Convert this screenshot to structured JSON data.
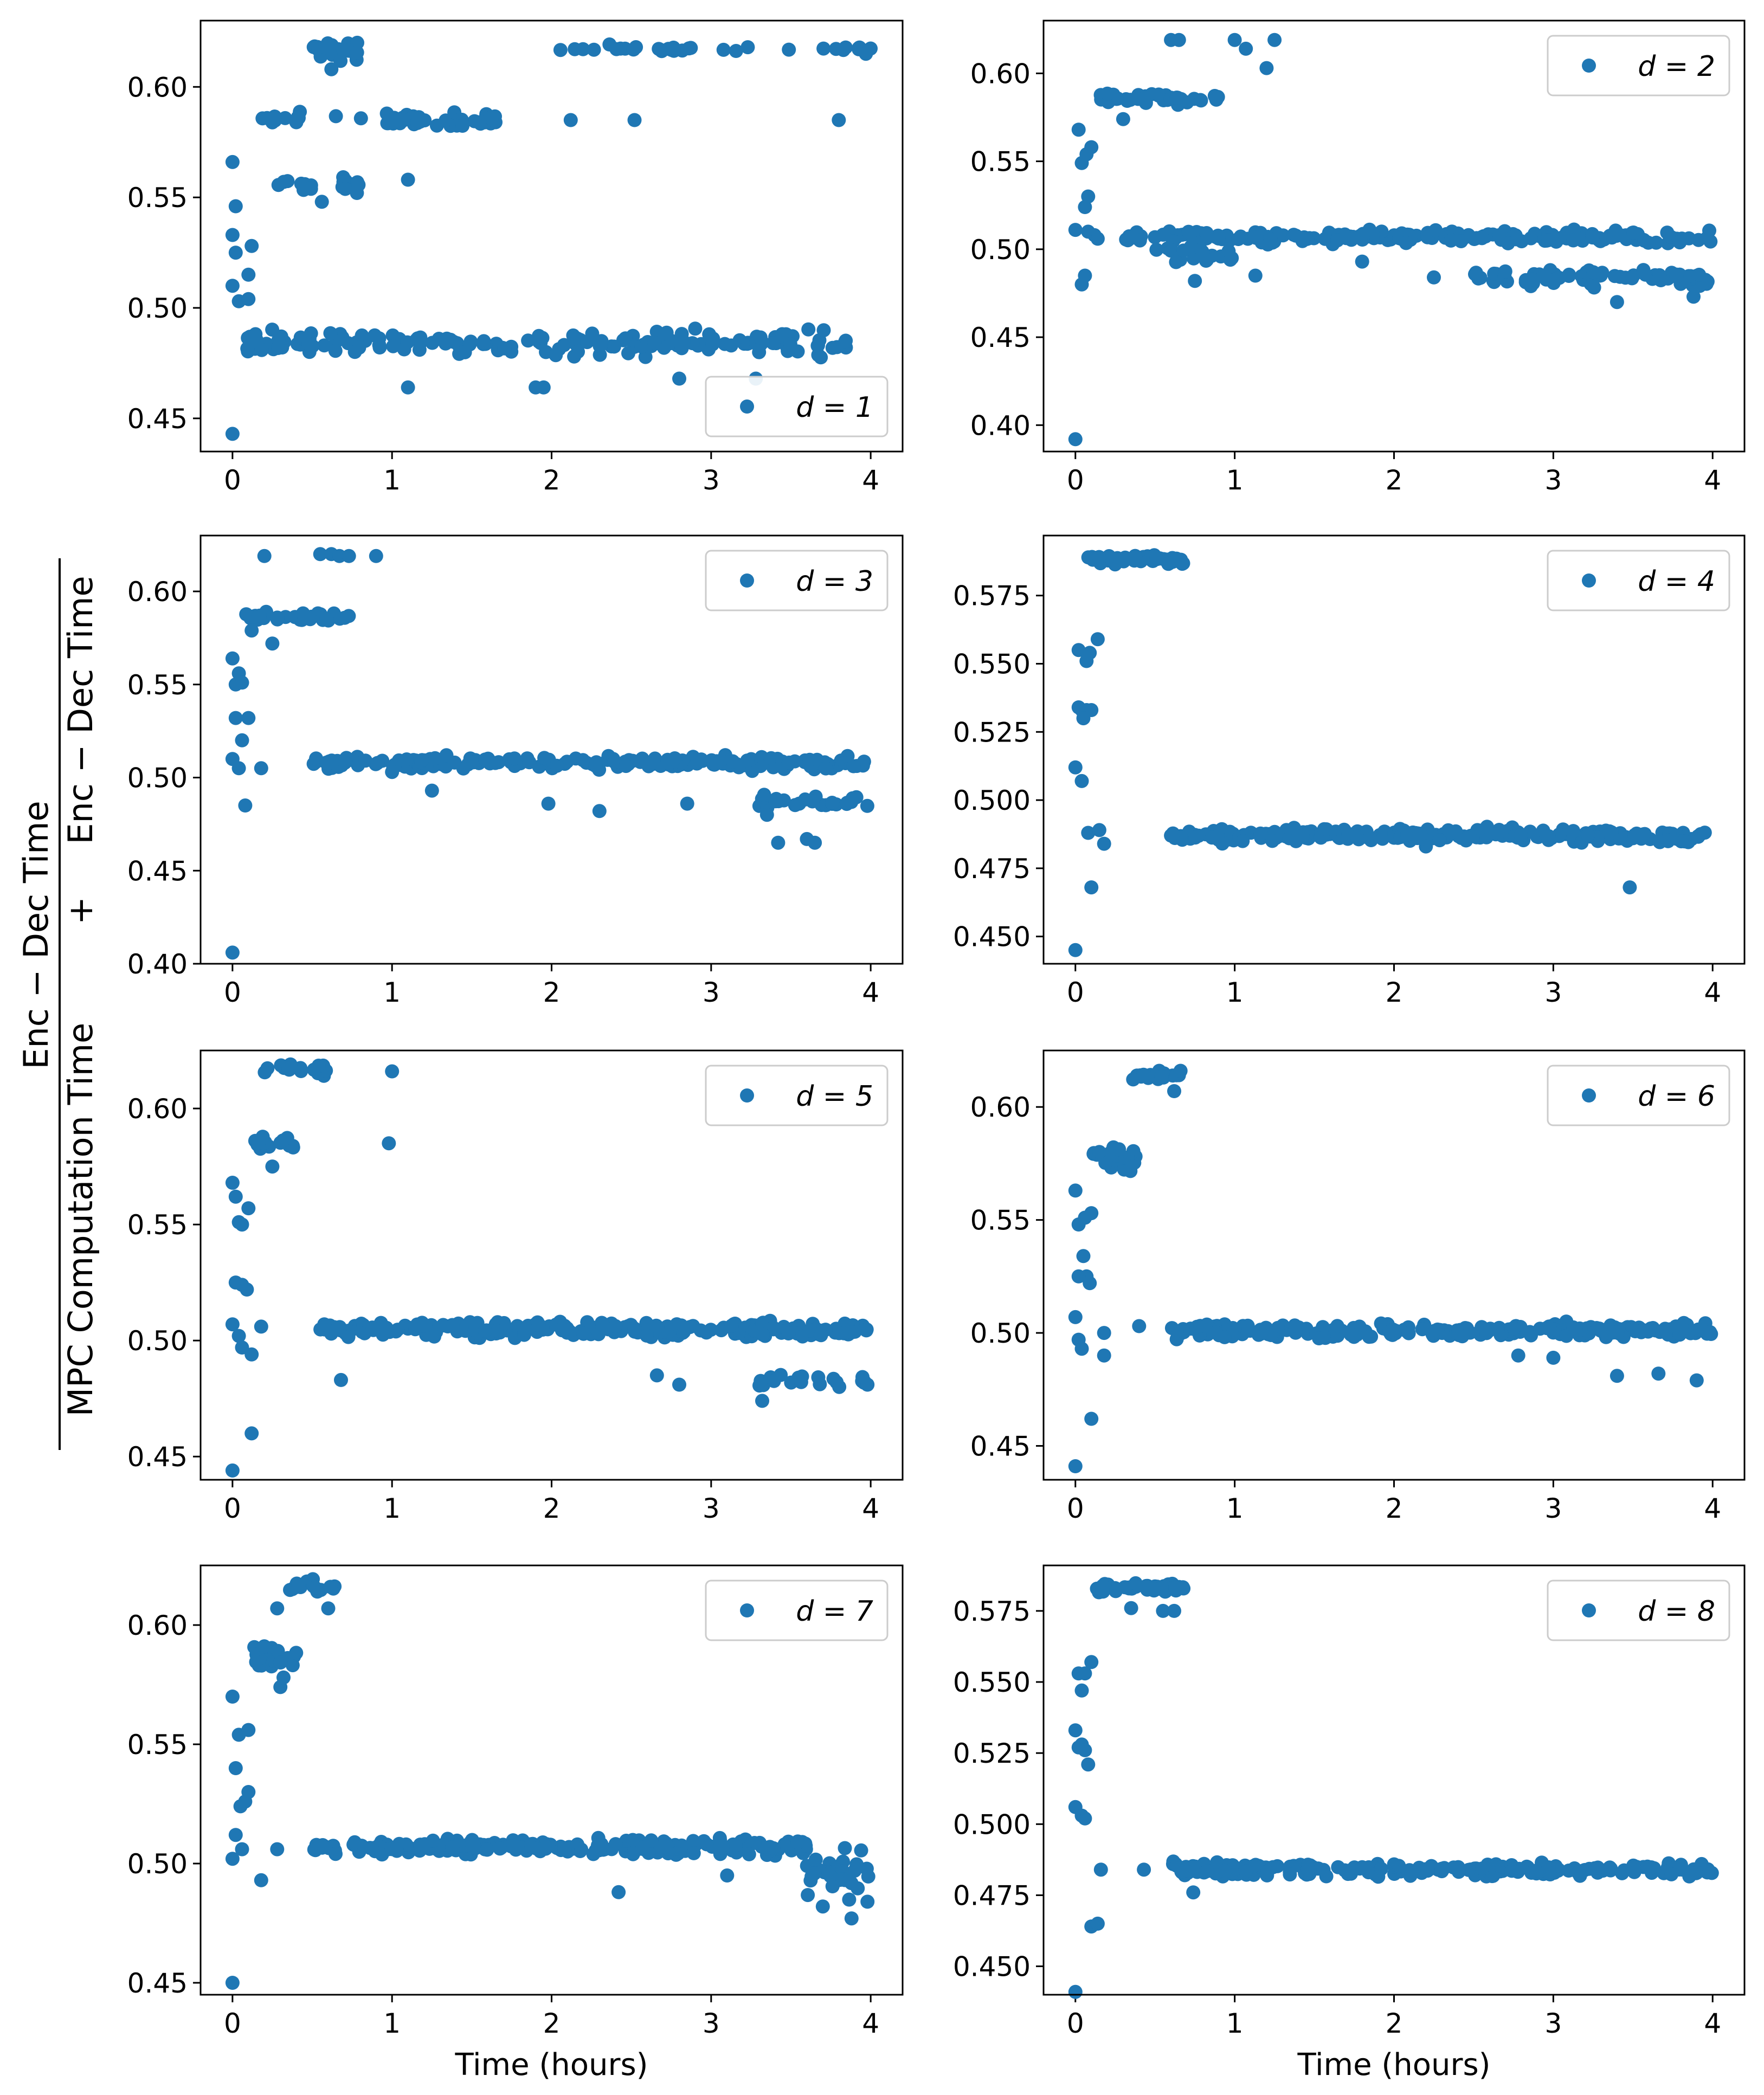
{
  "figure": {
    "shared_ylabel": {
      "numerator_1": "Enc − Dec   Time",
      "denominator_1": "MPC   Computation   Time",
      "plus": "+",
      "denominator_2": "Enc − Dec   Time"
    }
  },
  "colors": {
    "marker": "#1f77b4",
    "axes": "#000000",
    "legend_border": "#cccccc"
  },
  "chart_data": [
    {
      "type": "scatter",
      "title": "",
      "legend": "d = 1",
      "legend_loc": "lower-right",
      "xlabel": "",
      "ylabel": "",
      "xlim": [
        -0.2,
        4.2
      ],
      "ylim": [
        0.435,
        0.63
      ],
      "xticks": [
        0,
        1,
        2,
        3,
        4
      ],
      "yticks": [
        0.45,
        0.5,
        0.55,
        0.6
      ],
      "ytick_labels": [
        "0.45",
        "0.50",
        "0.55",
        "0.60"
      ],
      "clusters": [
        {
          "x_range": [
            0.04,
            4.0
          ],
          "y": 0.484,
          "spread": 0.003,
          "n": 170
        },
        {
          "x_range": [
            0.15,
            1.7
          ],
          "y": 0.585,
          "spread": 0.002,
          "n": 45
        },
        {
          "x_range": [
            0.15,
            0.8
          ],
          "y": 0.557,
          "spread": 0.002,
          "n": 20
        },
        {
          "x_range": [
            0.5,
            0.8
          ],
          "y": 0.616,
          "spread": 0.003,
          "n": 18
        },
        {
          "x_range": [
            2.0,
            4.0
          ],
          "y": 0.617,
          "spread": 0.001,
          "n": 32
        }
      ],
      "points": [
        [
          0.0,
          0.443
        ],
        [
          0.0,
          0.566
        ],
        [
          0.02,
          0.546
        ],
        [
          0.0,
          0.533
        ],
        [
          0.02,
          0.525
        ],
        [
          0.0,
          0.51
        ],
        [
          0.04,
          0.503
        ],
        [
          0.1,
          0.504
        ],
        [
          0.1,
          0.515
        ],
        [
          0.12,
          0.528
        ],
        [
          1.1,
          0.464
        ],
        [
          1.1,
          0.558
        ],
        [
          1.9,
          0.464
        ],
        [
          1.95,
          0.464
        ],
        [
          2.12,
          0.585
        ],
        [
          2.52,
          0.585
        ],
        [
          2.8,
          0.468
        ],
        [
          3.28,
          0.468
        ],
        [
          3.8,
          0.585
        ],
        [
          3.97,
          0.615
        ],
        [
          0.56,
          0.548
        ],
        [
          0.62,
          0.608
        ],
        [
          0.4,
          0.584
        ],
        [
          1.55,
          0.584
        ],
        [
          0.78,
          0.552
        ],
        [
          1.0,
          0.585
        ]
      ]
    },
    {
      "type": "scatter",
      "title": "",
      "legend": "d = 2",
      "legend_loc": "upper-right",
      "xlabel": "",
      "ylabel": "",
      "xlim": [
        -0.2,
        4.2
      ],
      "ylim": [
        0.385,
        0.63
      ],
      "xticks": [
        0,
        1,
        2,
        3,
        4
      ],
      "yticks": [
        0.4,
        0.45,
        0.5,
        0.55,
        0.6
      ],
      "ytick_labels": [
        "0.40",
        "0.45",
        "0.50",
        "0.55",
        "0.60"
      ],
      "clusters": [
        {
          "x_range": [
            0.3,
            4.0
          ],
          "y": 0.507,
          "spread": 0.002,
          "n": 190
        },
        {
          "x_range": [
            2.5,
            4.0
          ],
          "y": 0.484,
          "spread": 0.003,
          "n": 70
        },
        {
          "x_range": [
            0.15,
            0.9
          ],
          "y": 0.586,
          "spread": 0.002,
          "n": 35
        },
        {
          "x_range": [
            0.5,
            1.0
          ],
          "y": 0.497,
          "spread": 0.004,
          "n": 20
        }
      ],
      "points": [
        [
          0.0,
          0.392
        ],
        [
          0.0,
          0.511
        ],
        [
          0.02,
          0.568
        ],
        [
          0.04,
          0.549
        ],
        [
          0.07,
          0.554
        ],
        [
          0.1,
          0.558
        ],
        [
          0.08,
          0.53
        ],
        [
          0.06,
          0.524
        ],
        [
          0.04,
          0.48
        ],
        [
          0.06,
          0.485
        ],
        [
          0.08,
          0.51
        ],
        [
          0.12,
          0.508
        ],
        [
          0.14,
          0.506
        ],
        [
          0.6,
          0.619
        ],
        [
          0.65,
          0.619
        ],
        [
          1.0,
          0.619
        ],
        [
          1.07,
          0.614
        ],
        [
          1.2,
          0.603
        ],
        [
          1.25,
          0.619
        ],
        [
          0.3,
          0.574
        ],
        [
          0.75,
          0.482
        ],
        [
          1.13,
          0.485
        ],
        [
          3.4,
          0.47
        ],
        [
          3.88,
          0.473
        ],
        [
          1.8,
          0.493
        ],
        [
          2.25,
          0.484
        ]
      ]
    },
    {
      "type": "scatter",
      "title": "",
      "legend": "d = 3",
      "legend_loc": "upper-right",
      "xlabel": "",
      "ylabel": "",
      "xlim": [
        -0.2,
        4.2
      ],
      "ylim": [
        0.4,
        0.63
      ],
      "xticks": [
        0,
        1,
        2,
        3,
        4
      ],
      "yticks": [
        0.4,
        0.45,
        0.5,
        0.55,
        0.6
      ],
      "ytick_labels": [
        "0.40",
        "0.45",
        "0.50",
        "0.55",
        "0.60"
      ],
      "clusters": [
        {
          "x_range": [
            0.5,
            4.0
          ],
          "y": 0.508,
          "spread": 0.002,
          "n": 200
        },
        {
          "x_range": [
            3.3,
            4.0
          ],
          "y": 0.487,
          "spread": 0.002,
          "n": 25
        },
        {
          "x_range": [
            0.05,
            0.75
          ],
          "y": 0.586,
          "spread": 0.002,
          "n": 30
        }
      ],
      "points": [
        [
          0.0,
          0.406
        ],
        [
          0.0,
          0.564
        ],
        [
          0.02,
          0.55
        ],
        [
          0.04,
          0.556
        ],
        [
          0.06,
          0.551
        ],
        [
          0.02,
          0.532
        ],
        [
          0.06,
          0.52
        ],
        [
          0.1,
          0.532
        ],
        [
          0.0,
          0.51
        ],
        [
          0.04,
          0.505
        ],
        [
          0.08,
          0.485
        ],
        [
          0.12,
          0.579
        ],
        [
          0.17,
          0.587
        ],
        [
          0.2,
          0.619
        ],
        [
          0.55,
          0.62
        ],
        [
          0.62,
          0.62
        ],
        [
          0.67,
          0.619
        ],
        [
          0.73,
          0.619
        ],
        [
          0.9,
          0.619
        ],
        [
          0.25,
          0.572
        ],
        [
          0.18,
          0.505
        ],
        [
          1.0,
          0.503
        ],
        [
          1.25,
          0.493
        ],
        [
          1.98,
          0.486
        ],
        [
          2.3,
          0.482
        ],
        [
          2.85,
          0.486
        ],
        [
          3.35,
          0.48
        ],
        [
          3.42,
          0.465
        ],
        [
          3.6,
          0.467
        ],
        [
          3.65,
          0.465
        ]
      ]
    },
    {
      "type": "scatter",
      "title": "",
      "legend": "d = 4",
      "legend_loc": "upper-right",
      "xlabel": "",
      "ylabel": "",
      "xlim": [
        -0.2,
        4.2
      ],
      "ylim": [
        0.44,
        0.597
      ],
      "xticks": [
        0,
        1,
        2,
        3,
        4
      ],
      "yticks": [
        0.45,
        0.475,
        0.5,
        0.525,
        0.55,
        0.575
      ],
      "ytick_labels": [
        "0.450",
        "0.475",
        "0.500",
        "0.525",
        "0.550",
        "0.575"
      ],
      "clusters": [
        {
          "x_range": [
            0.6,
            4.0
          ],
          "y": 0.487,
          "spread": 0.0015,
          "n": 220
        },
        {
          "x_range": [
            0.08,
            0.7
          ],
          "y": 0.588,
          "spread": 0.0012,
          "n": 50
        }
      ],
      "points": [
        [
          0.0,
          0.445
        ],
        [
          0.0,
          0.512
        ],
        [
          0.02,
          0.534
        ],
        [
          0.04,
          0.533
        ],
        [
          0.07,
          0.533
        ],
        [
          0.1,
          0.533
        ],
        [
          0.05,
          0.53
        ],
        [
          0.02,
          0.555
        ],
        [
          0.07,
          0.551
        ],
        [
          0.09,
          0.554
        ],
        [
          0.14,
          0.559
        ],
        [
          0.04,
          0.507
        ],
        [
          0.08,
          0.488
        ],
        [
          0.1,
          0.468
        ],
        [
          0.15,
          0.489
        ],
        [
          0.18,
          0.484
        ],
        [
          3.48,
          0.468
        ],
        [
          0.6,
          0.487
        ],
        [
          1.05,
          0.485
        ],
        [
          2.2,
          0.483
        ]
      ]
    },
    {
      "type": "scatter",
      "title": "",
      "legend": "d = 5",
      "legend_loc": "upper-right",
      "xlabel": "",
      "ylabel": "",
      "xlim": [
        -0.2,
        4.2
      ],
      "ylim": [
        0.44,
        0.625
      ],
      "xticks": [
        0,
        1,
        2,
        3,
        4
      ],
      "yticks": [
        0.45,
        0.5,
        0.55,
        0.6
      ],
      "ytick_labels": [
        "0.45",
        "0.50",
        "0.55",
        "0.60"
      ],
      "clusters": [
        {
          "x_range": [
            0.55,
            4.0
          ],
          "y": 0.505,
          "spread": 0.002,
          "n": 230
        },
        {
          "x_range": [
            3.3,
            4.0
          ],
          "y": 0.483,
          "spread": 0.002,
          "n": 20
        },
        {
          "x_range": [
            0.12,
            0.4
          ],
          "y": 0.585,
          "spread": 0.002,
          "n": 20
        },
        {
          "x_range": [
            0.2,
            0.6
          ],
          "y": 0.616,
          "spread": 0.002,
          "n": 16
        }
      ],
      "points": [
        [
          0.0,
          0.444
        ],
        [
          0.0,
          0.568
        ],
        [
          0.02,
          0.562
        ],
        [
          0.04,
          0.551
        ],
        [
          0.06,
          0.55
        ],
        [
          0.1,
          0.557
        ],
        [
          0.02,
          0.525
        ],
        [
          0.06,
          0.524
        ],
        [
          0.09,
          0.522
        ],
        [
          0.0,
          0.507
        ],
        [
          0.04,
          0.502
        ],
        [
          0.06,
          0.497
        ],
        [
          0.12,
          0.494
        ],
        [
          0.18,
          0.506
        ],
        [
          0.12,
          0.46
        ],
        [
          0.25,
          0.575
        ],
        [
          0.98,
          0.585
        ],
        [
          1.0,
          0.616
        ],
        [
          0.68,
          0.483
        ],
        [
          2.66,
          0.485
        ],
        [
          2.8,
          0.481
        ],
        [
          3.32,
          0.474
        ],
        [
          3.98,
          0.481
        ]
      ]
    },
    {
      "type": "scatter",
      "title": "",
      "legend": "d = 6",
      "legend_loc": "upper-right",
      "xlabel": "",
      "ylabel": "",
      "xlim": [
        -0.2,
        4.2
      ],
      "ylim": [
        0.435,
        0.625
      ],
      "xticks": [
        0,
        1,
        2,
        3,
        4
      ],
      "yticks": [
        0.45,
        0.5,
        0.55,
        0.6
      ],
      "ytick_labels": [
        "0.45",
        "0.50",
        "0.55",
        "0.60"
      ],
      "clusters": [
        {
          "x_range": [
            0.6,
            4.0
          ],
          "y": 0.501,
          "spread": 0.002,
          "n": 230
        },
        {
          "x_range": [
            0.1,
            0.38
          ],
          "y": 0.578,
          "spread": 0.003,
          "n": 25
        },
        {
          "x_range": [
            0.35,
            0.65
          ],
          "y": 0.614,
          "spread": 0.001,
          "n": 20
        }
      ],
      "points": [
        [
          0.0,
          0.441
        ],
        [
          0.0,
          0.563
        ],
        [
          0.02,
          0.548
        ],
        [
          0.06,
          0.551
        ],
        [
          0.1,
          0.553
        ],
        [
          0.05,
          0.534
        ],
        [
          0.07,
          0.525
        ],
        [
          0.02,
          0.525
        ],
        [
          0.09,
          0.522
        ],
        [
          0.0,
          0.507
        ],
        [
          0.02,
          0.497
        ],
        [
          0.04,
          0.493
        ],
        [
          0.1,
          0.462
        ],
        [
          0.18,
          0.5
        ],
        [
          0.18,
          0.49
        ],
        [
          0.4,
          0.503
        ],
        [
          0.62,
          0.607
        ],
        [
          0.66,
          0.616
        ],
        [
          2.78,
          0.49
        ],
        [
          3.4,
          0.481
        ],
        [
          3.9,
          0.479
        ],
        [
          3.66,
          0.482
        ],
        [
          3.0,
          0.489
        ]
      ]
    },
    {
      "type": "scatter",
      "title": "",
      "legend": "d = 7",
      "legend_loc": "upper-right",
      "xlabel": "Time (hours)",
      "ylabel": "",
      "xlim": [
        -0.2,
        4.2
      ],
      "ylim": [
        0.445,
        0.625
      ],
      "xticks": [
        0,
        1,
        2,
        3,
        4
      ],
      "yticks": [
        0.45,
        0.5,
        0.55,
        0.6
      ],
      "ytick_labels": [
        "0.45",
        "0.50",
        "0.55",
        "0.60"
      ],
      "clusters": [
        {
          "x_range": [
            0.5,
            3.6
          ],
          "y": 0.507,
          "spread": 0.002,
          "n": 210
        },
        {
          "x_range": [
            3.6,
            4.0
          ],
          "y": 0.496,
          "spread": 0.006,
          "n": 30
        },
        {
          "x_range": [
            0.12,
            0.4
          ],
          "y": 0.585,
          "spread": 0.003,
          "n": 22
        },
        {
          "x_range": [
            0.35,
            0.65
          ],
          "y": 0.616,
          "spread": 0.002,
          "n": 16
        }
      ],
      "points": [
        [
          0.0,
          0.45
        ],
        [
          0.0,
          0.57
        ],
        [
          0.04,
          0.554
        ],
        [
          0.1,
          0.556
        ],
        [
          0.02,
          0.54
        ],
        [
          0.08,
          0.526
        ],
        [
          0.1,
          0.53
        ],
        [
          0.05,
          0.524
        ],
        [
          0.02,
          0.512
        ],
        [
          0.0,
          0.502
        ],
        [
          0.06,
          0.506
        ],
        [
          0.18,
          0.493
        ],
        [
          0.28,
          0.506
        ],
        [
          0.28,
          0.607
        ],
        [
          0.3,
          0.574
        ],
        [
          0.32,
          0.578
        ],
        [
          0.6,
          0.607
        ],
        [
          2.42,
          0.488
        ],
        [
          3.1,
          0.495
        ],
        [
          3.88,
          0.477
        ],
        [
          3.98,
          0.484
        ],
        [
          3.7,
          0.482
        ]
      ]
    },
    {
      "type": "scatter",
      "title": "",
      "legend": "d = 8",
      "legend_loc": "upper-right",
      "xlabel": "Time (hours)",
      "ylabel": "",
      "xlim": [
        -0.2,
        4.2
      ],
      "ylim": [
        0.44,
        0.591
      ],
      "xticks": [
        0,
        1,
        2,
        3,
        4
      ],
      "yticks": [
        0.45,
        0.475,
        0.5,
        0.525,
        0.55,
        0.575
      ],
      "ytick_labels": [
        "0.450",
        "0.475",
        "0.500",
        "0.525",
        "0.550",
        "0.575"
      ],
      "clusters": [
        {
          "x_range": [
            0.6,
            4.0
          ],
          "y": 0.484,
          "spread": 0.0015,
          "n": 220
        },
        {
          "x_range": [
            0.1,
            0.68
          ],
          "y": 0.583,
          "spread": 0.0012,
          "n": 40
        }
      ],
      "points": [
        [
          0.0,
          0.441
        ],
        [
          0.0,
          0.533
        ],
        [
          0.02,
          0.527
        ],
        [
          0.04,
          0.528
        ],
        [
          0.06,
          0.526
        ],
        [
          0.08,
          0.521
        ],
        [
          0.02,
          0.553
        ],
        [
          0.06,
          0.553
        ],
        [
          0.1,
          0.557
        ],
        [
          0.04,
          0.547
        ],
        [
          0.0,
          0.506
        ],
        [
          0.04,
          0.503
        ],
        [
          0.06,
          0.502
        ],
        [
          0.1,
          0.464
        ],
        [
          0.14,
          0.465
        ],
        [
          0.16,
          0.484
        ],
        [
          0.43,
          0.484
        ],
        [
          0.55,
          0.575
        ],
        [
          0.62,
          0.575
        ],
        [
          0.35,
          0.576
        ],
        [
          0.74,
          0.476
        ]
      ]
    }
  ]
}
